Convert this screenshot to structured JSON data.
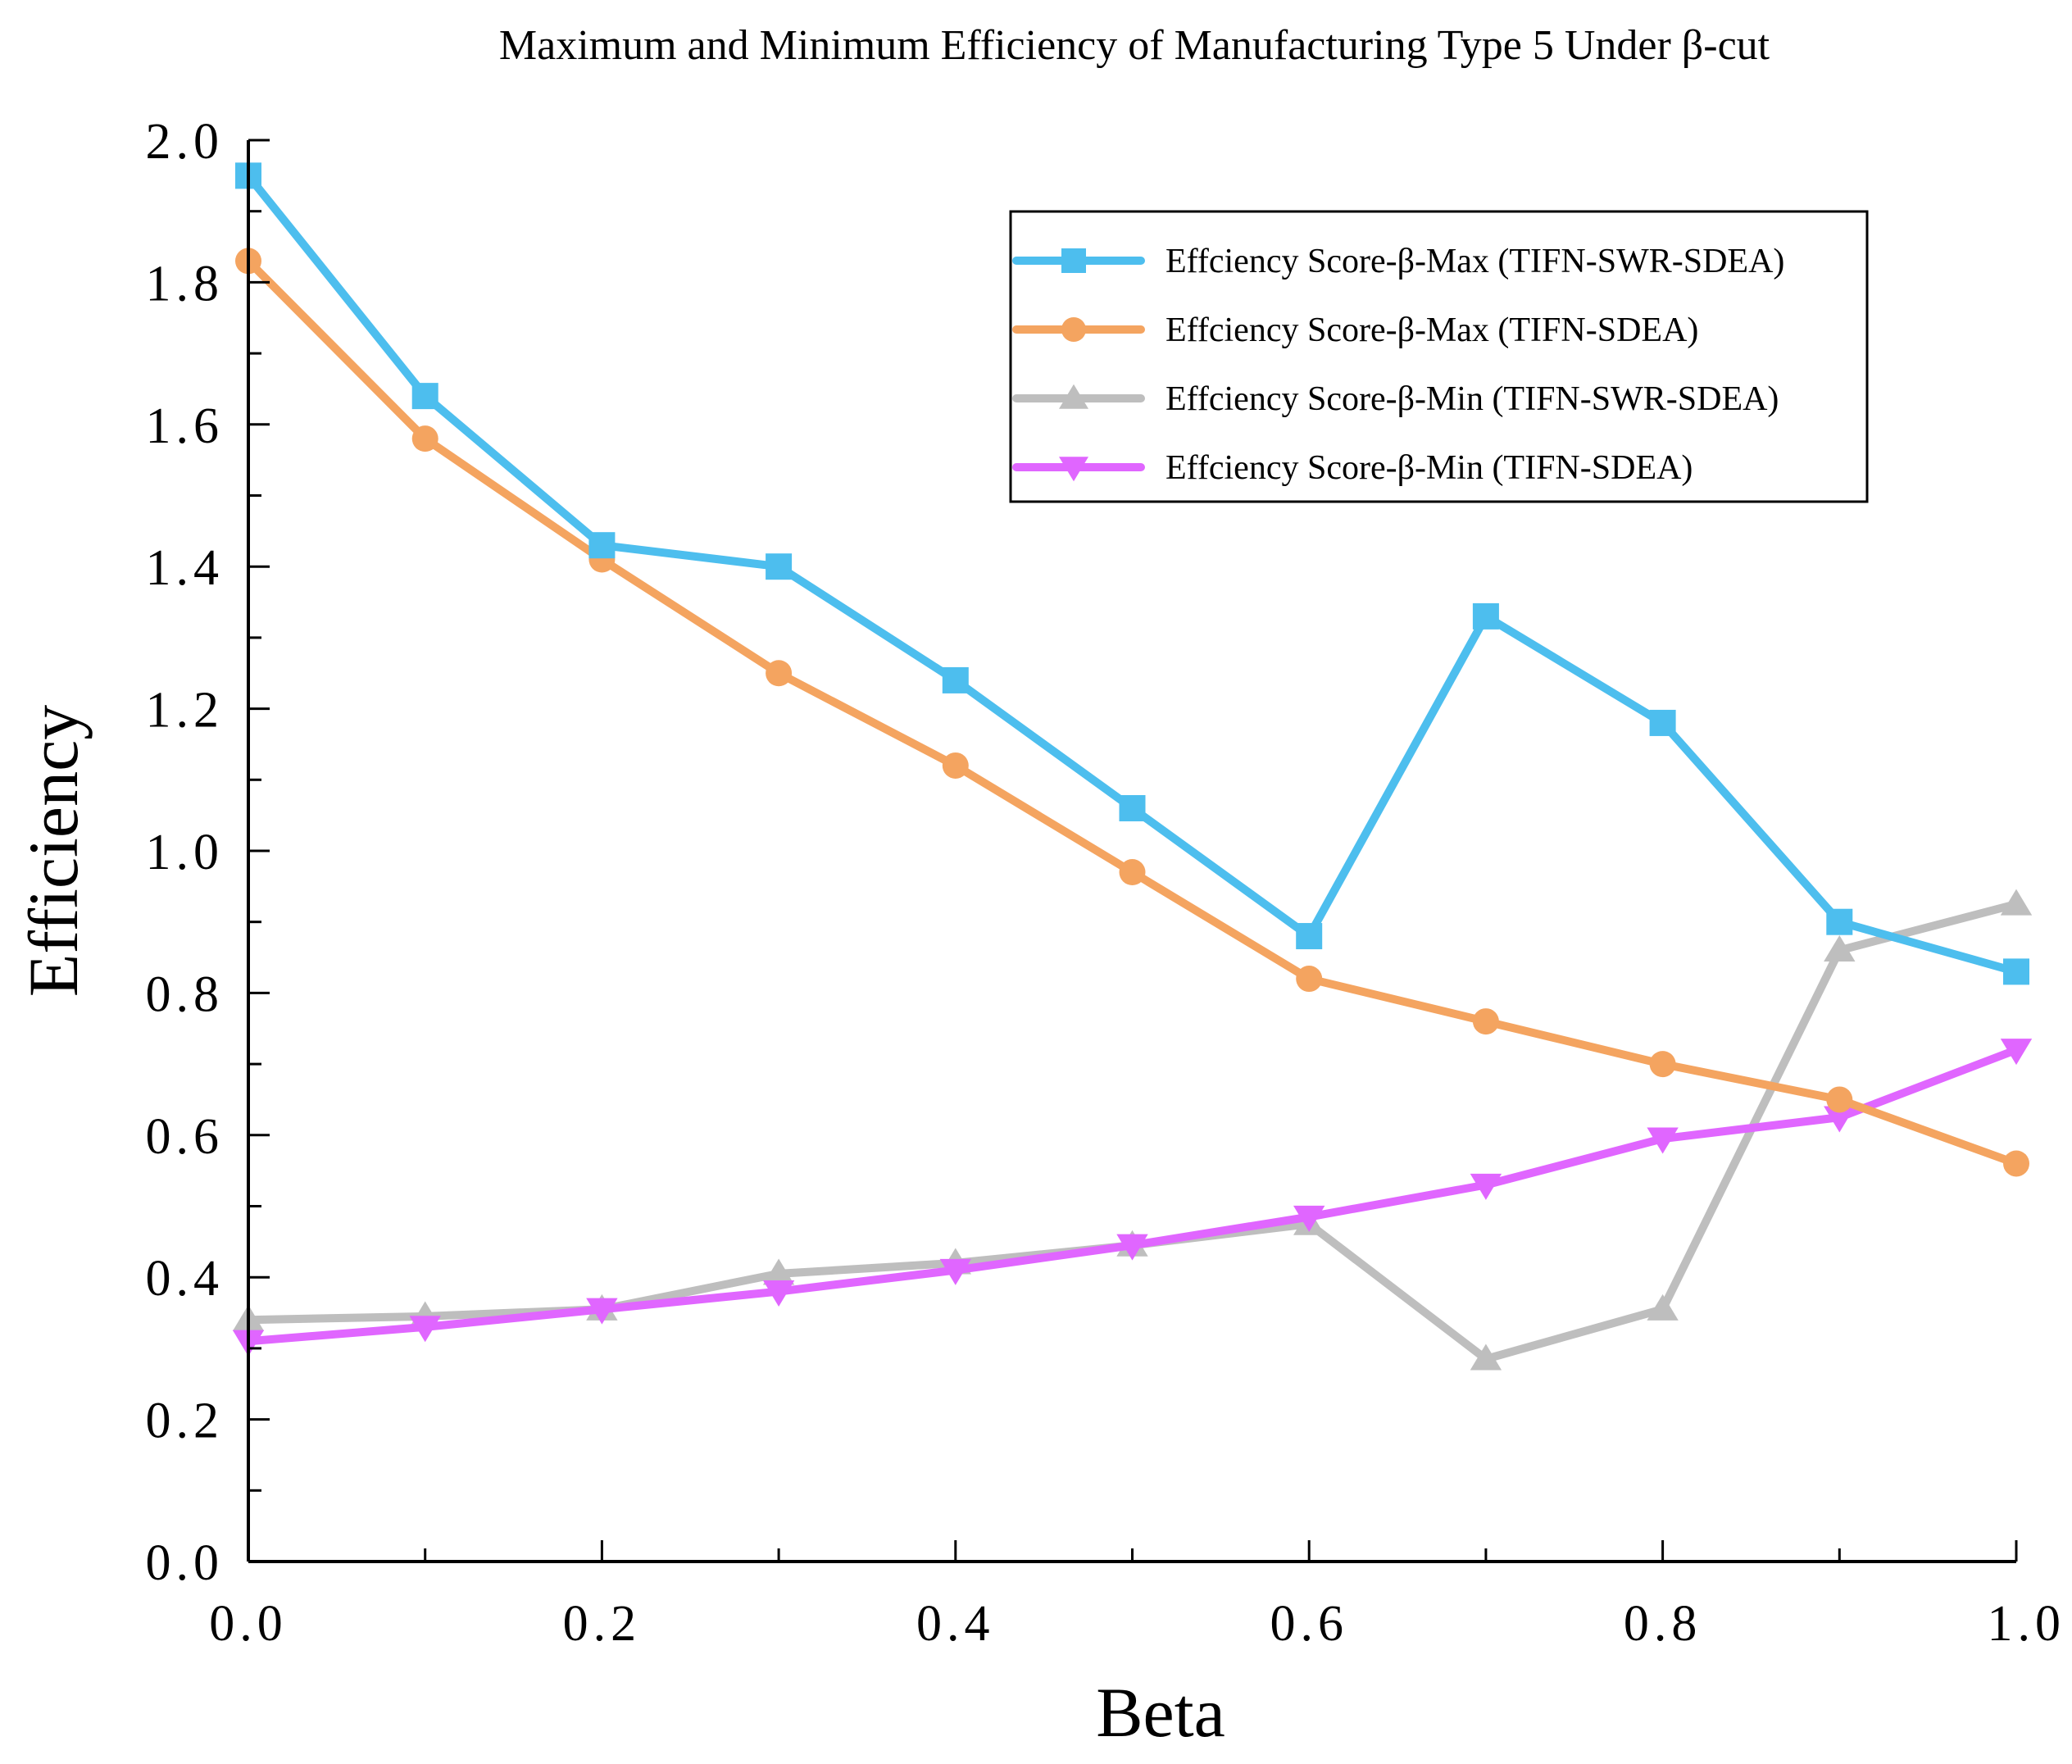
{
  "chart_data": {
    "type": "line",
    "title": "Maximum and Minimum Efficiency of Manufacturing Type 5 Under β-cut",
    "xlabel": "Beta",
    "ylabel": "Efficiency",
    "xlim": [
      0.0,
      1.0
    ],
    "ylim": [
      0.0,
      2.0
    ],
    "x": [
      0.0,
      0.1,
      0.2,
      0.3,
      0.4,
      0.5,
      0.6,
      0.7,
      0.8,
      0.9,
      1.0
    ],
    "x_ticks": [
      "0.0",
      "0.2",
      "0.4",
      "0.6",
      "0.8",
      "1.0"
    ],
    "y_ticks": [
      "0.0",
      "0.2",
      "0.4",
      "0.6",
      "0.8",
      "1.0",
      "1.2",
      "1.4",
      "1.6",
      "1.8",
      "2.0"
    ],
    "legend_position": "top-right",
    "grid": false,
    "series": [
      {
        "name": "Effciency Score-β-Max (TIFN-SWR-SDEA)",
        "color": "#4DBEEE",
        "marker": "square",
        "values": [
          1.95,
          1.64,
          1.43,
          1.4,
          1.24,
          1.06,
          0.88,
          1.33,
          1.18,
          0.9,
          0.83
        ]
      },
      {
        "name": "Effciency Score-β-Max (TIFN-SDEA)",
        "color": "#F4A460",
        "marker": "circle",
        "values": [
          1.83,
          1.58,
          1.41,
          1.25,
          1.12,
          0.97,
          0.82,
          0.76,
          0.7,
          0.65,
          0.56
        ]
      },
      {
        "name": "Effciency Score-β-Min (TIFN-SWR-SDEA)",
        "color": "#BEBEBE",
        "marker": "triangle-up",
        "values": [
          0.34,
          0.345,
          0.355,
          0.405,
          0.42,
          0.445,
          0.475,
          0.285,
          0.355,
          0.86,
          0.925
        ]
      },
      {
        "name": "Effciency Score-β-Min (TIFN-SDEA)",
        "color": "#E066FF",
        "marker": "triangle-down",
        "values": [
          0.31,
          0.33,
          0.355,
          0.38,
          0.41,
          0.445,
          0.485,
          0.53,
          0.595,
          0.625,
          0.72
        ]
      }
    ]
  }
}
